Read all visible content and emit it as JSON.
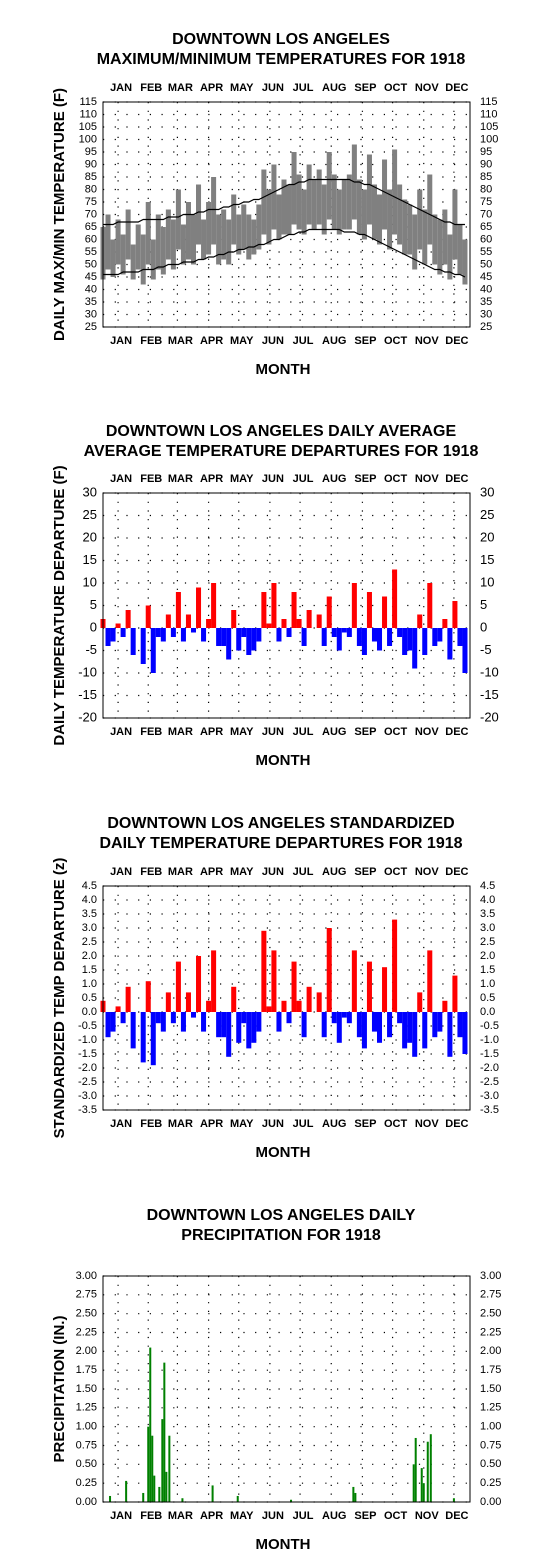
{
  "chart_data": [
    {
      "type": "minmax",
      "title": [
        "DOWNTOWN LOS ANGELES",
        "MAXIMUM/MINIMUM TEMPERATURES FOR 1918"
      ],
      "xlabel": "MONTH",
      "ylabel": "DAILY MAX/MIN TEMPERATURE (F)",
      "x": [
        1,
        6,
        11,
        16,
        21,
        26,
        31,
        36,
        41,
        46,
        51,
        56,
        61,
        66,
        71,
        76,
        81,
        86,
        91,
        96,
        101,
        106,
        111,
        116,
        121,
        126,
        131,
        136,
        141,
        146,
        151,
        156,
        161,
        166,
        171,
        176,
        181,
        186,
        191,
        196,
        201,
        206,
        211,
        216,
        221,
        226,
        231,
        236,
        241,
        246,
        251,
        256,
        261,
        266,
        271,
        276,
        281,
        286,
        291,
        296,
        301,
        306,
        311,
        316,
        321,
        326,
        331,
        336,
        341,
        346,
        351,
        356,
        361
      ],
      "xlim": [
        1,
        366
      ],
      "xticks": [
        {
          "value": 16,
          "label": "JAN"
        },
        {
          "value": 46,
          "label": "FEB"
        },
        {
          "value": 75,
          "label": "MAR"
        },
        {
          "value": 106,
          "label": "APR"
        },
        {
          "value": 136,
          "label": "MAY"
        },
        {
          "value": 167,
          "label": "JUN"
        },
        {
          "value": 197,
          "label": "JUL"
        },
        {
          "value": 228,
          "label": "AUG"
        },
        {
          "value": 259,
          "label": "SEP"
        },
        {
          "value": 289,
          "label": "OCT"
        },
        {
          "value": 320,
          "label": "NOV"
        },
        {
          "value": 350,
          "label": "DEC"
        }
      ],
      "ylim": [
        25,
        115
      ],
      "yticks": [
        25,
        30,
        35,
        40,
        45,
        50,
        55,
        60,
        65,
        70,
        75,
        80,
        85,
        90,
        95,
        100,
        105,
        110,
        115
      ],
      "grid": true,
      "range": {
        "color": "#808080",
        "high": [
          65,
          70,
          60,
          68,
          62,
          72,
          58,
          66,
          62,
          75,
          60,
          70,
          65,
          72,
          68,
          80,
          66,
          75,
          70,
          82,
          68,
          75,
          85,
          70,
          72,
          68,
          78,
          70,
          74,
          70,
          68,
          74,
          88,
          80,
          90,
          78,
          84,
          82,
          95,
          86,
          80,
          90,
          84,
          88,
          82,
          95,
          86,
          80,
          84,
          86,
          98,
          84,
          80,
          94,
          82,
          78,
          92,
          80,
          96,
          82,
          76,
          74,
          70,
          80,
          72,
          86,
          70,
          68,
          72,
          62,
          80,
          66,
          60
        ],
        "low": [
          44,
          48,
          45,
          50,
          46,
          52,
          44,
          48,
          42,
          50,
          44,
          48,
          46,
          52,
          48,
          56,
          50,
          52,
          50,
          58,
          52,
          54,
          58,
          50,
          52,
          50,
          58,
          54,
          56,
          52,
          54,
          56,
          62,
          58,
          64,
          60,
          62,
          62,
          66,
          64,
          62,
          66,
          64,
          66,
          62,
          68,
          64,
          62,
          64,
          64,
          68,
          62,
          60,
          66,
          60,
          58,
          64,
          56,
          62,
          58,
          54,
          54,
          48,
          56,
          50,
          58,
          50,
          46,
          50,
          44,
          52,
          46,
          42
        ]
      },
      "lines": [
        {
          "color": "#000000",
          "values": [
            66,
            66,
            66,
            67,
            67,
            67,
            67,
            67,
            68,
            68,
            68,
            68,
            68,
            69,
            69,
            69,
            70,
            70,
            70,
            71,
            71,
            72,
            72,
            72,
            73,
            73,
            74,
            74,
            75,
            75,
            76,
            76,
            77,
            78,
            79,
            80,
            81,
            82,
            82,
            83,
            83,
            84,
            84,
            84,
            84,
            84,
            84,
            84,
            84,
            84,
            83,
            83,
            82,
            82,
            81,
            80,
            79,
            78,
            77,
            76,
            75,
            74,
            73,
            72,
            71,
            70,
            69,
            68,
            67,
            67,
            66,
            66,
            66
          ]
        },
        {
          "color": "#000000",
          "values": [
            46,
            46,
            46,
            46,
            47,
            47,
            47,
            47,
            48,
            48,
            48,
            49,
            49,
            50,
            50,
            50,
            51,
            51,
            51,
            52,
            52,
            53,
            53,
            54,
            54,
            55,
            55,
            56,
            56,
            57,
            57,
            58,
            58,
            59,
            60,
            60,
            61,
            62,
            62,
            63,
            63,
            64,
            64,
            64,
            64,
            64,
            64,
            64,
            63,
            63,
            63,
            62,
            62,
            61,
            60,
            59,
            58,
            57,
            56,
            55,
            54,
            53,
            52,
            51,
            50,
            49,
            48,
            48,
            47,
            47,
            46,
            46,
            45
          ]
        }
      ]
    },
    {
      "type": "bar",
      "title": [
        "DOWNTOWN LOS ANGELES DAILY AVERAGE",
        "AVERAGE TEMPERATURE DEPARTURES FOR 1918"
      ],
      "xlabel": "MONTH",
      "ylabel": "DAILY TEMPERATURE DEPARTURE (F)",
      "x": [
        1,
        6,
        11,
        16,
        21,
        26,
        31,
        36,
        41,
        46,
        51,
        56,
        61,
        66,
        71,
        76,
        81,
        86,
        91,
        96,
        101,
        106,
        111,
        116,
        121,
        126,
        131,
        136,
        141,
        146,
        151,
        156,
        161,
        166,
        171,
        176,
        181,
        186,
        191,
        196,
        201,
        206,
        211,
        216,
        221,
        226,
        231,
        236,
        241,
        246,
        251,
        256,
        261,
        266,
        271,
        276,
        281,
        286,
        291,
        296,
        301,
        306,
        311,
        316,
        321,
        326,
        331,
        336,
        341,
        346,
        351,
        356,
        361
      ],
      "xlim": [
        1,
        366
      ],
      "xticks": [
        {
          "value": 16,
          "label": "JAN"
        },
        {
          "value": 46,
          "label": "FEB"
        },
        {
          "value": 75,
          "label": "MAR"
        },
        {
          "value": 106,
          "label": "APR"
        },
        {
          "value": 136,
          "label": "MAY"
        },
        {
          "value": 167,
          "label": "JUN"
        },
        {
          "value": 197,
          "label": "JUL"
        },
        {
          "value": 228,
          "label": "AUG"
        },
        {
          "value": 259,
          "label": "SEP"
        },
        {
          "value": 289,
          "label": "OCT"
        },
        {
          "value": 320,
          "label": "NOV"
        },
        {
          "value": 350,
          "label": "DEC"
        }
      ],
      "ylim": [
        -20,
        30
      ],
      "yticks": [
        -20,
        -15,
        -10,
        -5,
        0,
        5,
        10,
        15,
        20,
        25,
        30
      ],
      "grid": true,
      "pos_color": "#ff0000",
      "neg_color": "#0000ff",
      "values": [
        2,
        -4,
        -3,
        1,
        -2,
        4,
        -6,
        0,
        -8,
        5,
        -10,
        -2,
        -3,
        3,
        -2,
        8,
        -3,
        3,
        -1,
        9,
        -3,
        2,
        10,
        -4,
        -4,
        -7,
        4,
        -5,
        -2,
        -6,
        -5,
        -3,
        8,
        1,
        10,
        -3,
        2,
        -2,
        8,
        2,
        -4,
        4,
        0,
        3,
        -4,
        7,
        -2,
        -5,
        -1,
        -2,
        10,
        -4,
        -6,
        8,
        -3,
        -5,
        7,
        -4,
        13,
        -2,
        -6,
        -5,
        -9,
        3,
        -6,
        10,
        -4,
        -3,
        2,
        -7,
        6,
        -4,
        -10
      ]
    },
    {
      "type": "bar",
      "title": [
        "DOWNTOWN LOS ANGELES STANDARDIZED",
        "DAILY TEMPERATURE DEPARTURES FOR 1918"
      ],
      "xlabel": "MONTH",
      "ylabel": "STANDARDIZED TEMP DEPARTURE (z)",
      "x": [
        1,
        6,
        11,
        16,
        21,
        26,
        31,
        36,
        41,
        46,
        51,
        56,
        61,
        66,
        71,
        76,
        81,
        86,
        91,
        96,
        101,
        106,
        111,
        116,
        121,
        126,
        131,
        136,
        141,
        146,
        151,
        156,
        161,
        166,
        171,
        176,
        181,
        186,
        191,
        196,
        201,
        206,
        211,
        216,
        221,
        226,
        231,
        236,
        241,
        246,
        251,
        256,
        261,
        266,
        271,
        276,
        281,
        286,
        291,
        296,
        301,
        306,
        311,
        316,
        321,
        326,
        331,
        336,
        341,
        346,
        351,
        356,
        361
      ],
      "xlim": [
        1,
        366
      ],
      "xticks": [
        {
          "value": 16,
          "label": "JAN"
        },
        {
          "value": 46,
          "label": "FEB"
        },
        {
          "value": 75,
          "label": "MAR"
        },
        {
          "value": 106,
          "label": "APR"
        },
        {
          "value": 136,
          "label": "MAY"
        },
        {
          "value": 167,
          "label": "JUN"
        },
        {
          "value": 197,
          "label": "JUL"
        },
        {
          "value": 228,
          "label": "AUG"
        },
        {
          "value": 259,
          "label": "SEP"
        },
        {
          "value": 289,
          "label": "OCT"
        },
        {
          "value": 320,
          "label": "NOV"
        },
        {
          "value": 350,
          "label": "DEC"
        }
      ],
      "ylim": [
        -3.5,
        4.5
      ],
      "yticks": [
        -3.5,
        {
          "value": -3,
          "label": "-3.0"
        },
        -2.5,
        {
          "value": -2,
          "label": "-2.0"
        },
        -1.5,
        {
          "value": -1,
          "label": "-1.0"
        },
        -0.5,
        {
          "value": 0,
          "label": "0.0"
        },
        0.5,
        {
          "value": 1,
          "label": "1.0"
        },
        1.5,
        {
          "value": 2,
          "label": "2.0"
        },
        2.5,
        {
          "value": 3,
          "label": "3.0"
        },
        3.5,
        {
          "value": 4,
          "label": "4.0"
        },
        4.5
      ],
      "grid": true,
      "pos_color": "#ff0000",
      "neg_color": "#0000ff",
      "values": [
        0.4,
        -0.9,
        -0.7,
        0.2,
        -0.4,
        0.9,
        -1.3,
        0,
        -1.8,
        1.1,
        -1.9,
        -0.4,
        -0.7,
        0.7,
        -0.4,
        1.8,
        -0.7,
        0.7,
        -0.2,
        2,
        -0.7,
        0.4,
        2.2,
        -0.9,
        -0.9,
        -1.6,
        0.9,
        -1.1,
        -0.4,
        -1.3,
        -1.1,
        -0.7,
        2.9,
        0.2,
        2.2,
        -0.7,
        0.4,
        -0.4,
        1.8,
        0.4,
        -0.9,
        0.9,
        0,
        0.7,
        -0.9,
        3,
        -0.4,
        -1.1,
        -0.2,
        -0.4,
        2.2,
        -0.9,
        -1.3,
        1.8,
        -0.7,
        -1.1,
        1.6,
        -0.9,
        3.3,
        -0.4,
        -1.3,
        -1.1,
        -1.6,
        0.7,
        -1.3,
        2.2,
        -0.9,
        -0.7,
        0.4,
        -1.6,
        1.3,
        -0.9,
        -1.5
      ]
    },
    {
      "type": "bar",
      "title": [
        "DOWNTOWN LOS ANGELES DAILY",
        "PRECIPITATION FOR 1918"
      ],
      "xlabel": "MONTH",
      "ylabel": "PRECIPITATION (IN.)",
      "x": [
        8,
        24,
        41,
        46,
        48,
        50,
        52,
        57,
        60,
        62,
        64,
        67,
        80,
        110,
        135,
        188,
        250,
        252,
        310,
        312,
        318,
        320,
        324,
        327,
        350
      ],
      "xlim": [
        1,
        366
      ],
      "xticks": [
        {
          "value": 16,
          "label": "JAN"
        },
        {
          "value": 46,
          "label": "FEB"
        },
        {
          "value": 75,
          "label": "MAR"
        },
        {
          "value": 106,
          "label": "APR"
        },
        {
          "value": 136,
          "label": "MAY"
        },
        {
          "value": 167,
          "label": "JUN"
        },
        {
          "value": 197,
          "label": "JUL"
        },
        {
          "value": 228,
          "label": "AUG"
        },
        {
          "value": 259,
          "label": "SEP"
        },
        {
          "value": 289,
          "label": "OCT"
        },
        {
          "value": 320,
          "label": "NOV"
        },
        {
          "value": 350,
          "label": "DEC"
        }
      ],
      "ylim": [
        0,
        3
      ],
      "yticks": [
        {
          "value": 0,
          "label": "0.00"
        },
        {
          "value": 0.25,
          "label": "0.25"
        },
        {
          "value": 0.5,
          "label": "0.50"
        },
        {
          "value": 0.75,
          "label": "0.75"
        },
        {
          "value": 1,
          "label": "1.00"
        },
        {
          "value": 1.25,
          "label": "1.25"
        },
        {
          "value": 1.5,
          "label": "1.50"
        },
        {
          "value": 1.75,
          "label": "1.75"
        },
        {
          "value": 2,
          "label": "2.00"
        },
        {
          "value": 2.25,
          "label": "2.25"
        },
        {
          "value": 2.5,
          "label": "2.50"
        },
        {
          "value": 2.75,
          "label": "2.75"
        },
        {
          "value": 3,
          "label": "3.00"
        }
      ],
      "grid": true,
      "color": "#008000",
      "values": [
        0.08,
        0.28,
        0.12,
        1.0,
        2.05,
        0.88,
        0.35,
        0.2,
        1.1,
        1.85,
        0.4,
        0.88,
        0.05,
        0.22,
        0.08,
        0.03,
        0.2,
        0.12,
        0.5,
        0.85,
        0.45,
        0.25,
        0.8,
        0.9,
        0.05
      ]
    }
  ]
}
